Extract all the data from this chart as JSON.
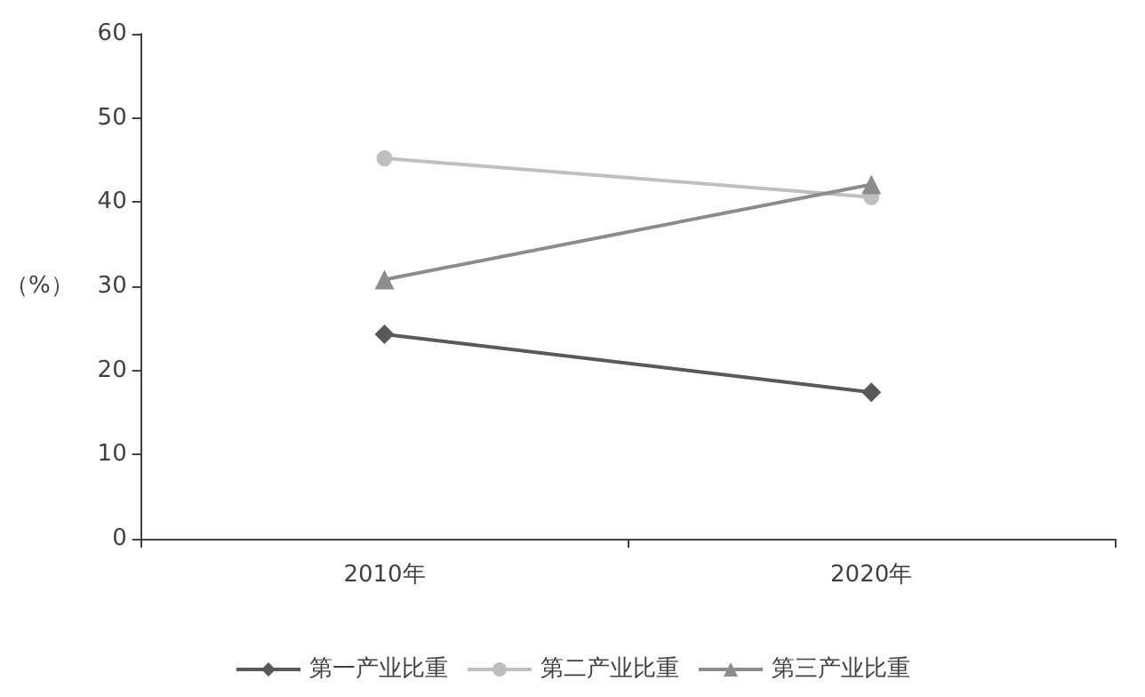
{
  "chart_data": {
    "type": "line",
    "ylabel": "（%）",
    "categories": [
      "2010年",
      "2020年"
    ],
    "series": [
      {
        "name": "第一产业比重",
        "color": "#595959",
        "values": [
          24.3,
          17.4
        ],
        "marker": "diamond"
      },
      {
        "name": "第二产业比重",
        "color": "#bfbfbf",
        "values": [
          45.2,
          40.6
        ],
        "marker": "circle"
      },
      {
        "name": "第三产业比重",
        "color": "#8c8c8c",
        "values": [
          30.8,
          42.1
        ],
        "marker": "triangle"
      }
    ],
    "ylim": [
      0,
      60
    ],
    "yticks": [
      0,
      10,
      20,
      30,
      40,
      50,
      60
    ],
    "grid": false,
    "legend": "bottom"
  }
}
